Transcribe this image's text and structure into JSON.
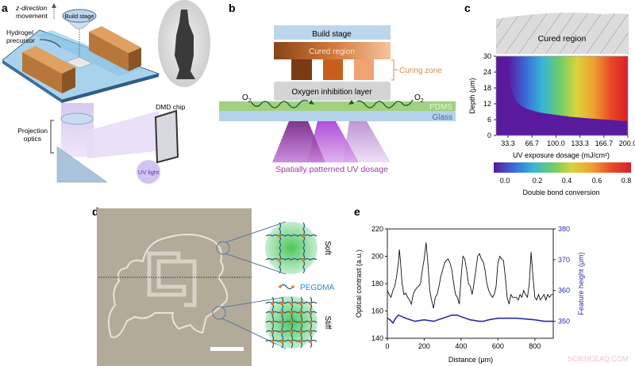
{
  "panel_labels": {
    "a": "a",
    "b": "b",
    "c": "c",
    "d": "d",
    "e": "e"
  },
  "panel_a": {
    "z_direction": "z-direction",
    "movement": "movement",
    "build_stage": "Build stage",
    "hydrogel": "Hydrogel",
    "precursor": "precursor",
    "projection": "Projection",
    "optics": "optics",
    "dmd_chip": "DMD chip",
    "uv_light": "UV light"
  },
  "panel_b": {
    "build_stage": "Build stage",
    "cured_region": "Cured region",
    "curing_zone": "Curing zone",
    "oxygen_layer": "Oxygen inhibition layer",
    "o2_left": "O",
    "o2_right": "O",
    "o2_sub": "2",
    "pdms": "PDMS",
    "glass": "Glass",
    "uv_dosage": "Spatially patterned UV dosage",
    "colors": {
      "build_stage": "#bcd6ec",
      "pdms": "#9fd17f",
      "glass": "#b4d2ec",
      "curing_zone": "#e0884a",
      "uv_text": "#9a3aa8"
    }
  },
  "panel_d": {
    "soft": "Soft",
    "stiff": "Stiff",
    "pegdma": "PEGDMA",
    "colors": {
      "photo": "#b3ab9a",
      "pegdma": "#2b8ccc"
    }
  },
  "watermark": "SCIENCEAQ.COM",
  "chart_data": [
    {
      "type": "heatmap",
      "panel": "c",
      "top_label": "Cured region",
      "xlabel": "UV exposure dosage (mJ/cm²)",
      "ylabel": "Depth (μm)",
      "xticks": [
        "33.3",
        "66.7",
        "100.0",
        "133.3",
        "166.7",
        "200.0"
      ],
      "xtick_values": [
        33.3,
        66.7,
        100.0,
        133.3,
        166.7,
        200.0
      ],
      "yticks": [
        "0",
        "6",
        "12",
        "18",
        "24",
        "30"
      ],
      "ytick_values": [
        0,
        6,
        12,
        18,
        24,
        30
      ],
      "xlim": [
        16.7,
        200
      ],
      "ylim": [
        0,
        30
      ],
      "cure_boundary": {
        "dosage": [
          33.3,
          36,
          40,
          45,
          50,
          60,
          70,
          80,
          100,
          120,
          140,
          160,
          180,
          200
        ],
        "depth": [
          30,
          20,
          15.5,
          13,
          11.5,
          10,
          9.2,
          8.6,
          7.8,
          7.1,
          6.6,
          6.2,
          5.8,
          5.4
        ]
      },
      "colorbar": {
        "label": "Double bond conversion",
        "ticks": [
          "0.0",
          "0.2",
          "0.4",
          "0.6",
          "0.8"
        ],
        "range": [
          0,
          0.8
        ],
        "colors": [
          "#5a1a9e",
          "#3a68d8",
          "#37b4d8",
          "#6ccc6a",
          "#d8d43a",
          "#f0a030",
          "#e84a28",
          "#d8202a"
        ]
      }
    },
    {
      "type": "line",
      "panel": "e",
      "xlabel": "Distance (μm)",
      "ylabel": "Optical contrast (a.u.)",
      "y2label": "Feature height (μm)",
      "xlim": [
        0,
        900
      ],
      "ylim": [
        140,
        220
      ],
      "y2lim": [
        344.5,
        380
      ],
      "xticks": [
        "0",
        "200",
        "400",
        "600",
        "800"
      ],
      "xtick_values": [
        0,
        200,
        400,
        600,
        800
      ],
      "yticks": [
        "140",
        "160",
        "180",
        "200",
        "220"
      ],
      "ytick_values": [
        140,
        160,
        180,
        200,
        220
      ],
      "y2ticks": [
        "350",
        "360",
        "370",
        "380"
      ],
      "y2tick_values": [
        350,
        360,
        370,
        380
      ],
      "series": [
        {
          "axis": "left",
          "color": "#111111",
          "x": [
            0,
            10,
            20,
            30,
            40,
            50,
            60,
            65,
            70,
            80,
            90,
            100,
            110,
            120,
            130,
            140,
            150,
            160,
            170,
            180,
            190,
            200,
            210,
            220,
            230,
            240,
            250,
            260,
            270,
            280,
            290,
            300,
            310,
            320,
            330,
            340,
            350,
            360,
            370,
            380,
            390,
            400,
            410,
            420,
            430,
            440,
            450,
            460,
            470,
            480,
            490,
            500,
            510,
            520,
            530,
            540,
            550,
            560,
            570,
            580,
            590,
            600,
            610,
            620,
            630,
            640,
            650,
            660,
            670,
            680,
            690,
            700,
            710,
            720,
            730,
            740,
            750,
            760,
            770,
            780,
            790,
            800,
            810,
            820,
            830,
            840,
            850,
            860,
            870,
            880,
            890,
            900
          ],
          "y": [
            175,
            172,
            170,
            175,
            178,
            185,
            195,
            205,
            198,
            180,
            172,
            173,
            170,
            168,
            165,
            172,
            175,
            177,
            178,
            180,
            190,
            198,
            210,
            195,
            175,
            168,
            162,
            170,
            172,
            178,
            185,
            190,
            195,
            197,
            198,
            195,
            190,
            180,
            172,
            170,
            165,
            185,
            200,
            198,
            190,
            180,
            178,
            172,
            180,
            190,
            200,
            202,
            198,
            196,
            190,
            180,
            175,
            172,
            170,
            172,
            178,
            195,
            200,
            198,
            197,
            185,
            170,
            165,
            172,
            170,
            170,
            170,
            168,
            172,
            170,
            175,
            172,
            170,
            180,
            203,
            185,
            170,
            168,
            172,
            168,
            170,
            172,
            168,
            172,
            170,
            172,
            172
          ]
        },
        {
          "axis": "right",
          "color": "#2b2ba8",
          "x": [
            0,
            15,
            30,
            45,
            60,
            80,
            100,
            150,
            200,
            250,
            300,
            350,
            380,
            400,
            450,
            500,
            520,
            550,
            600,
            700,
            800,
            850,
            900
          ],
          "y": [
            351,
            350.5,
            349.5,
            351,
            352,
            351.5,
            351,
            350,
            350.5,
            350,
            351,
            352,
            352,
            351.5,
            350.5,
            350,
            350,
            350.5,
            351,
            351,
            350.5,
            350,
            350
          ]
        }
      ]
    }
  ]
}
